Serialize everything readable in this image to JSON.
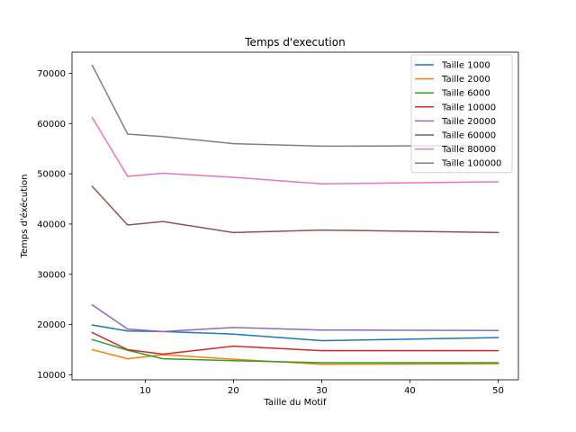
{
  "chart_data": {
    "type": "line",
    "title": "Temps d'execution",
    "xlabel": "Taille du Motif",
    "ylabel": "Temps d'éxécution",
    "x": [
      4,
      8,
      12,
      20,
      30,
      50
    ],
    "xlim": [
      1.7,
      52.3
    ],
    "ylim": [
      9000,
      74200
    ],
    "xticks": [
      10,
      20,
      30,
      40,
      50
    ],
    "yticks": [
      10000,
      20000,
      30000,
      40000,
      50000,
      60000,
      70000
    ],
    "legend_position": "top-right",
    "series": [
      {
        "name": "Taille 1000",
        "color": "#1f77b4",
        "values": [
          19900,
          18700,
          18600,
          18100,
          16800,
          17400
        ]
      },
      {
        "name": "Taille 2000",
        "color": "#ff7f0e",
        "values": [
          15000,
          13200,
          14000,
          13100,
          12100,
          12200
        ]
      },
      {
        "name": "Taille 6000",
        "color": "#2ca02c",
        "values": [
          17000,
          14900,
          13200,
          12800,
          12400,
          12400
        ]
      },
      {
        "name": "Taille 10000",
        "color": "#d62728",
        "values": [
          18400,
          15000,
          14100,
          15700,
          14800,
          14800
        ]
      },
      {
        "name": "Taille 20000",
        "color": "#9467bd",
        "values": [
          23900,
          19100,
          18600,
          19400,
          18900,
          18800
        ]
      },
      {
        "name": "Taille 60000",
        "color": "#8c564b",
        "values": [
          47500,
          39800,
          40500,
          38300,
          38800,
          38300
        ]
      },
      {
        "name": "Taille 80000",
        "color": "#e377c2",
        "values": [
          61200,
          49500,
          50100,
          49300,
          48000,
          48400
        ]
      },
      {
        "name": "Taille 100000",
        "color": "#7f7f7f",
        "values": [
          71600,
          57900,
          57400,
          56000,
          55500,
          55600
        ]
      }
    ]
  }
}
